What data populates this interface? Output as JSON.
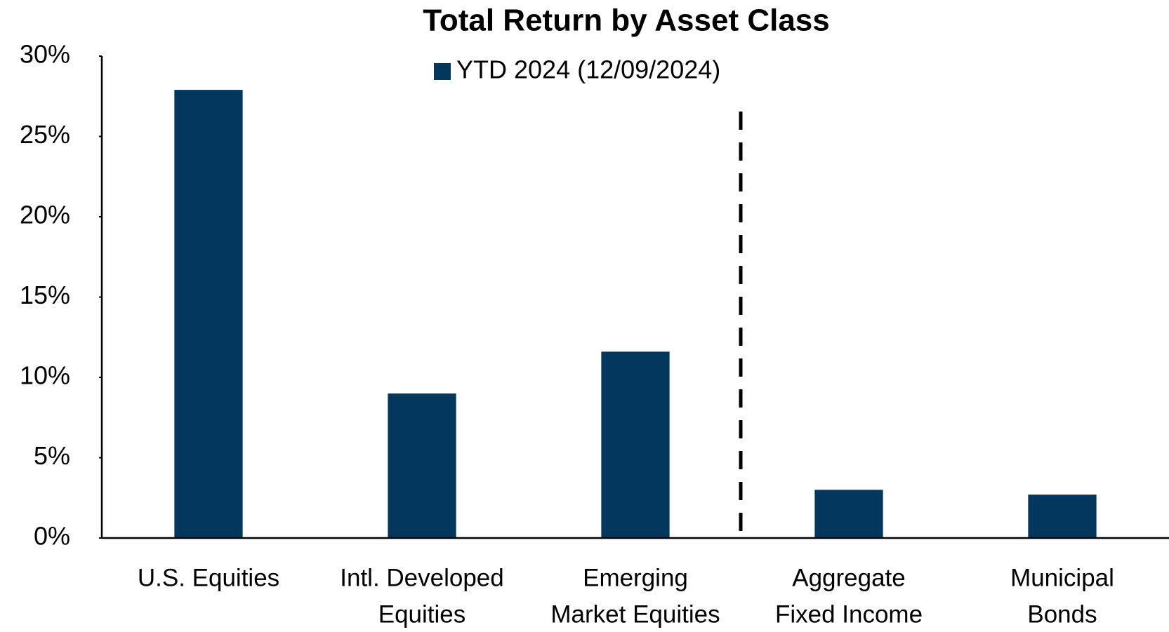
{
  "chart_data": {
    "type": "bar",
    "title": "Total Return by Asset Class",
    "categories": [
      [
        "U.S. Equities"
      ],
      [
        "Intl. Developed",
        "Equities"
      ],
      [
        "Emerging",
        "Market Equities"
      ],
      [
        "Aggregate",
        "Fixed Income"
      ],
      [
        "Municipal",
        "Bonds"
      ]
    ],
    "series": [
      {
        "name": "YTD 2024 (12/09/2024)",
        "color": "#03375c",
        "values": [
          27.9,
          9.0,
          11.6,
          3.0,
          2.7
        ]
      }
    ],
    "ylim": [
      0,
      30
    ],
    "yticks": [
      {
        "value": 0,
        "label": "0%"
      },
      {
        "value": 5,
        "label": "5%"
      },
      {
        "value": 10,
        "label": "10%"
      },
      {
        "value": 15,
        "label": "15%"
      },
      {
        "value": 20,
        "label": "20%"
      },
      {
        "value": 25,
        "label": "25%"
      },
      {
        "value": 30,
        "label": "30%"
      }
    ],
    "grid": false,
    "legend": "top"
  }
}
